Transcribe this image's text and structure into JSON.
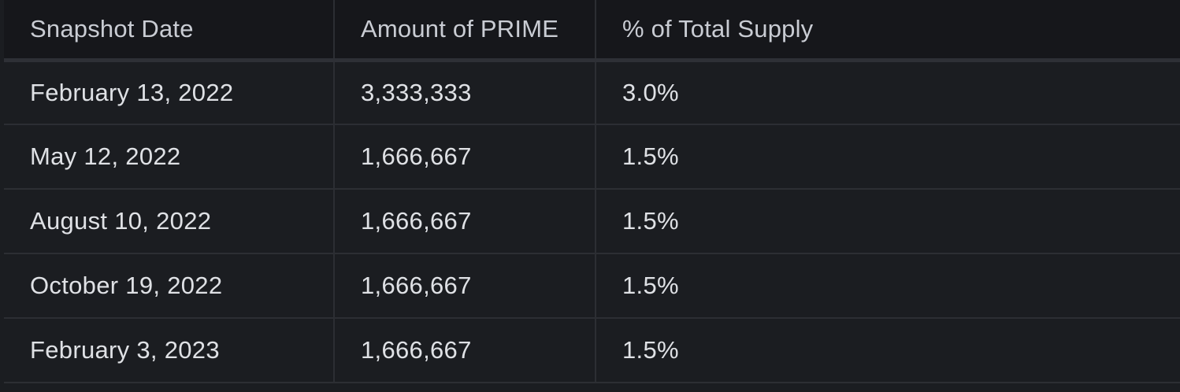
{
  "table": {
    "headers": [
      "Snapshot Date",
      "Amount of PRIME",
      "% of Total Supply"
    ],
    "rows": [
      [
        "February 13, 2022",
        "3,333,333",
        "3.0%"
      ],
      [
        "May 12, 2022",
        "1,666,667",
        "1.5%"
      ],
      [
        "August 10, 2022",
        "1,666,667",
        "1.5%"
      ],
      [
        "October 19, 2022",
        "1,666,667",
        "1.5%"
      ],
      [
        "February 3, 2023",
        "1,666,667",
        "1.5%"
      ]
    ]
  },
  "colors": {
    "header_bg": "#16171b",
    "body_bg": "#1b1d21",
    "grid_line": "#2c2e33",
    "header_text": "#c9ccd3",
    "body_text": "#dfe1e5"
  }
}
